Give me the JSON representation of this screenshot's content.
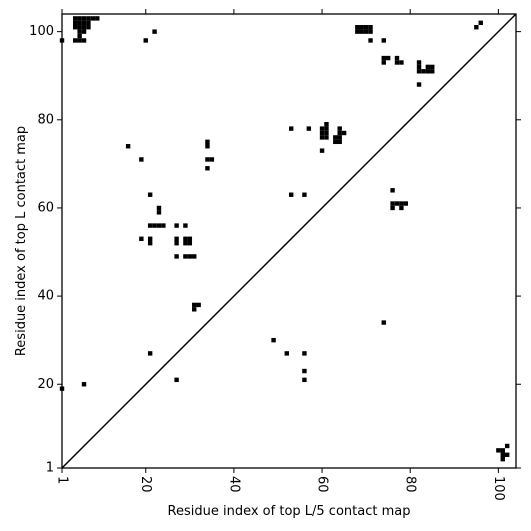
{
  "chart_data": {
    "type": "heatmap",
    "title": "",
    "xlabel": "Residue index of top L/5 contact map",
    "ylabel": "Residue index of top L contact map",
    "xlim": [
      1,
      104
    ],
    "ylim": [
      1,
      104
    ],
    "x_ticks": [
      1,
      20,
      40,
      60,
      80,
      100
    ],
    "y_ticks": [
      1,
      20,
      40,
      60,
      80,
      100
    ],
    "x_tick_labels": [
      "1",
      "20",
      "40",
      "60",
      "80",
      "100"
    ],
    "y_tick_labels": [
      "1",
      "20",
      "40",
      "60",
      "80",
      "100"
    ],
    "x_tick_rotation_deg": 90,
    "grid": false,
    "diagonal_line": true,
    "mark_color": "#000000",
    "background_color": "#ffffff",
    "lower_triangle_contacts": [
      [
        1,
        19
      ],
      [
        6,
        20
      ],
      [
        21,
        27
      ],
      [
        27,
        21
      ],
      [
        49,
        30
      ],
      [
        52,
        27
      ],
      [
        56,
        27
      ],
      [
        56,
        23
      ],
      [
        56,
        21
      ],
      [
        74,
        34
      ],
      [
        100,
        5
      ],
      [
        101,
        5
      ],
      [
        101,
        4
      ],
      [
        101,
        3
      ],
      [
        102,
        4
      ],
      [
        102,
        6
      ]
    ],
    "upper_triangle_contacts": [
      [
        1,
        98
      ],
      [
        4,
        103
      ],
      [
        4,
        102
      ],
      [
        4,
        101
      ],
      [
        4,
        98
      ],
      [
        5,
        103
      ],
      [
        5,
        102
      ],
      [
        5,
        101
      ],
      [
        5,
        100
      ],
      [
        5,
        99
      ],
      [
        5,
        98
      ],
      [
        6,
        103
      ],
      [
        6,
        102
      ],
      [
        6,
        101
      ],
      [
        6,
        100
      ],
      [
        6,
        98
      ],
      [
        7,
        103
      ],
      [
        7,
        102
      ],
      [
        7,
        101
      ],
      [
        8,
        103
      ],
      [
        9,
        103
      ],
      [
        16,
        74
      ],
      [
        19,
        71
      ],
      [
        20,
        98
      ],
      [
        22,
        100
      ],
      [
        21,
        63
      ],
      [
        21,
        56
      ],
      [
        21,
        53
      ],
      [
        21,
        52
      ],
      [
        22,
        56
      ],
      [
        23,
        60
      ],
      [
        23,
        59
      ],
      [
        23,
        56
      ],
      [
        24,
        56
      ],
      [
        19,
        53
      ],
      [
        27,
        56
      ],
      [
        27,
        53
      ],
      [
        27,
        52
      ],
      [
        27,
        49
      ],
      [
        29,
        56
      ],
      [
        29,
        53
      ],
      [
        29,
        52
      ],
      [
        29,
        49
      ],
      [
        30,
        53
      ],
      [
        30,
        52
      ],
      [
        30,
        49
      ],
      [
        31,
        49
      ],
      [
        31,
        38
      ],
      [
        31,
        37
      ],
      [
        32,
        38
      ],
      [
        34,
        75
      ],
      [
        34,
        74
      ],
      [
        34,
        71
      ],
      [
        35,
        71
      ],
      [
        34,
        69
      ],
      [
        53,
        78
      ],
      [
        53,
        63
      ],
      [
        56,
        63
      ],
      [
        57,
        78
      ],
      [
        60,
        73
      ],
      [
        60,
        78
      ],
      [
        60,
        77
      ],
      [
        60,
        76
      ],
      [
        61,
        79
      ],
      [
        61,
        78
      ],
      [
        61,
        77
      ],
      [
        61,
        76
      ],
      [
        63,
        76
      ],
      [
        63,
        75
      ],
      [
        64,
        78
      ],
      [
        64,
        77
      ],
      [
        64,
        76
      ],
      [
        64,
        75
      ],
      [
        65,
        77
      ],
      [
        68,
        101
      ],
      [
        68,
        100
      ],
      [
        69,
        101
      ],
      [
        69,
        100
      ],
      [
        70,
        101
      ],
      [
        70,
        100
      ],
      [
        71,
        101
      ],
      [
        71,
        100
      ],
      [
        71,
        98
      ],
      [
        74,
        98
      ],
      [
        74,
        94
      ],
      [
        74,
        93
      ],
      [
        75,
        94
      ],
      [
        77,
        94
      ],
      [
        77,
        93
      ],
      [
        78,
        93
      ],
      [
        76,
        64
      ],
      [
        76,
        61
      ],
      [
        76,
        60
      ],
      [
        77,
        61
      ],
      [
        78,
        61
      ],
      [
        78,
        60
      ],
      [
        79,
        61
      ],
      [
        82,
        93
      ],
      [
        82,
        92
      ],
      [
        82,
        91
      ],
      [
        82,
        88
      ],
      [
        83,
        91
      ],
      [
        84,
        92
      ],
      [
        84,
        91
      ],
      [
        85,
        92
      ],
      [
        85,
        91
      ],
      [
        95,
        101
      ],
      [
        96,
        102
      ]
    ]
  }
}
